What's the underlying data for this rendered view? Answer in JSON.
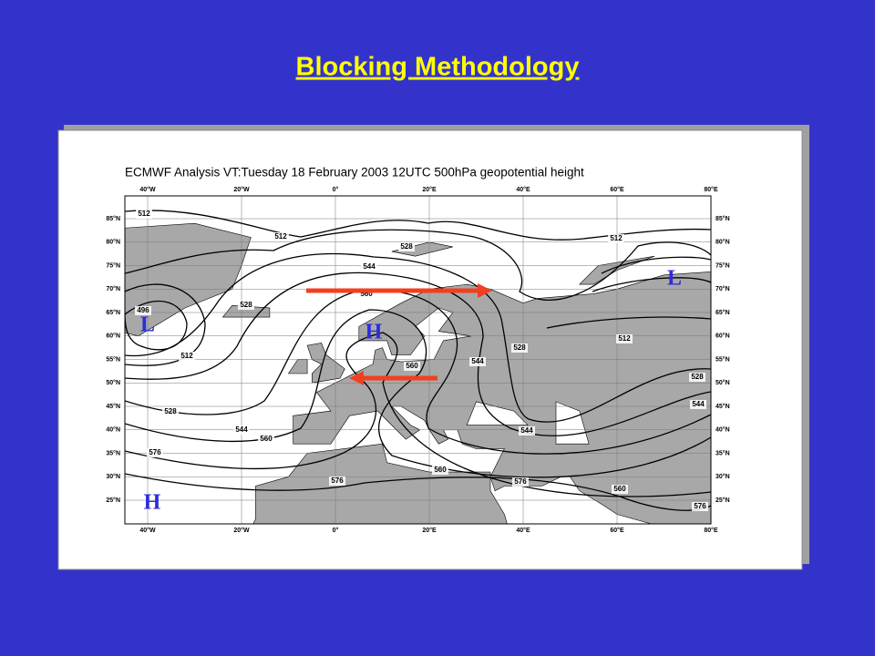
{
  "title": "Blocking Methodology",
  "map": {
    "title": "ECMWF  Analysis VT:Tuesday 18 February 2003 12UTC 500hPa geopotential height",
    "longitude_labels": [
      "40°W",
      "20°W",
      "0°",
      "20°E",
      "40°E",
      "60°E",
      "80°E"
    ],
    "latitude_labels": [
      "85°N",
      "80°N",
      "75°N",
      "70°N",
      "65°N",
      "60°N",
      "55°N",
      "50°N",
      "45°N",
      "40°N",
      "35°N",
      "30°N",
      "25°N"
    ],
    "contour_labels": [
      "512",
      "512",
      "528",
      "512",
      "544",
      "528",
      "496",
      "560",
      "512",
      "512",
      "560",
      "544",
      "528",
      "528",
      "544",
      "528",
      "544",
      "560",
      "544",
      "576",
      "560",
      "576",
      "576",
      "560",
      "576"
    ],
    "pressure_centers": [
      "L",
      "L",
      "H",
      "H"
    ]
  }
}
